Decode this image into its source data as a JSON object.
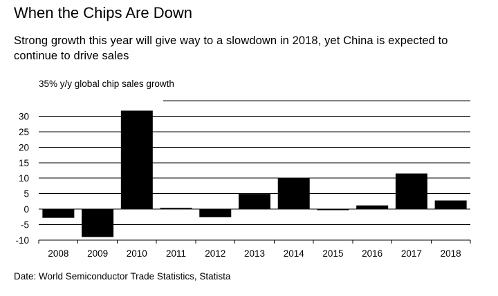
{
  "title": "When the Chips Are Down",
  "subtitle": "Strong growth this year will give way to a slowdown in 2018, yet China is expected to continue to drive sales",
  "source": "Date: World Semiconductor Trade Statistics, Statista",
  "colors": {
    "bar": "#000000",
    "grid": "#000000",
    "background": "#ffffff"
  },
  "chart_data": {
    "type": "bar",
    "title": "When the Chips Are Down",
    "ylabel": "35% y/y global chip sales growth",
    "xlabel": "",
    "categories": [
      "2008",
      "2009",
      "2010",
      "2011",
      "2012",
      "2013",
      "2014",
      "2015",
      "2016",
      "2017",
      "2018"
    ],
    "values": [
      -2.8,
      -9.0,
      31.8,
      0.4,
      -2.6,
      4.9,
      10.0,
      -0.2,
      1.2,
      11.5,
      2.8
    ],
    "ylim": [
      -10,
      35
    ],
    "yticks": [
      -10,
      -5,
      0,
      5,
      10,
      15,
      20,
      25,
      30,
      35
    ],
    "ytick_labels": [
      "-10",
      "-5",
      "0",
      "5",
      "10",
      "15",
      "20",
      "25",
      "30",
      "35%"
    ],
    "grid": true
  }
}
